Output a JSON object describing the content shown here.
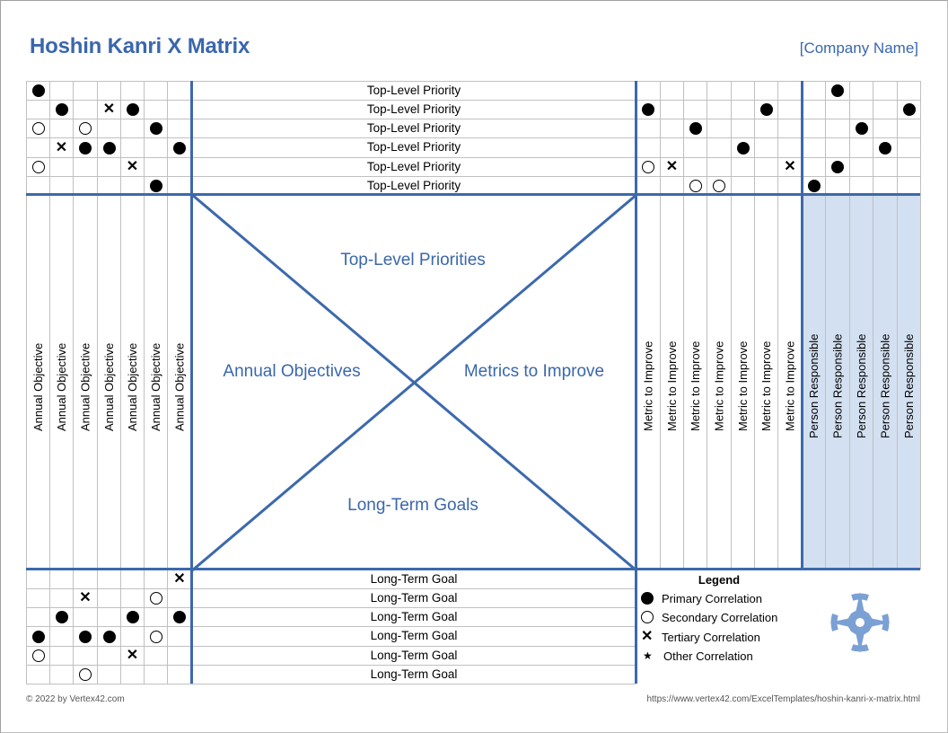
{
  "header": {
    "title": "Hoshin Kanri X Matrix",
    "company": "[Company Name]"
  },
  "colors": {
    "accent": "#3c69ad",
    "title": "#3a67ac",
    "person_fill": "#d3e0f1",
    "grid": "#c0c0c0",
    "compass": "#7ba0d4"
  },
  "quadrants": {
    "top": "Top-Level Priorities",
    "left": "Annual Objectives",
    "right": "Metrics to Improve",
    "bottom": "Long-Term Goals"
  },
  "top_rows": [
    {
      "label": "Top-Level Priority",
      "left": [
        "P",
        "",
        "",
        "",
        "",
        "",
        ""
      ],
      "metrics": [
        "",
        "",
        "",
        "",
        "",
        "",
        ""
      ],
      "persons": [
        "",
        "P",
        "",
        "",
        ""
      ]
    },
    {
      "label": "Top-Level Priority",
      "left": [
        "",
        "P",
        "",
        "X",
        "P",
        "",
        ""
      ],
      "metrics": [
        "P",
        "",
        "",
        "",
        "",
        "P",
        ""
      ],
      "persons": [
        "",
        "",
        "",
        "",
        "P"
      ]
    },
    {
      "label": "Top-Level Priority",
      "left": [
        "S",
        "",
        "S",
        "",
        "",
        "P",
        ""
      ],
      "metrics": [
        "",
        "",
        "P",
        "",
        "",
        "",
        ""
      ],
      "persons": [
        "",
        "",
        "P",
        "",
        ""
      ]
    },
    {
      "label": "Top-Level Priority",
      "left": [
        "",
        "X",
        "P",
        "P",
        "",
        "",
        "P"
      ],
      "metrics": [
        "",
        "",
        "",
        "",
        "P",
        "",
        ""
      ],
      "persons": [
        "",
        "",
        "",
        "P",
        ""
      ]
    },
    {
      "label": "Top-Level Priority",
      "left": [
        "S",
        "",
        "",
        "",
        "X",
        "",
        ""
      ],
      "metrics": [
        "S",
        "X",
        "",
        "",
        "",
        "",
        "X"
      ],
      "persons": [
        "",
        "P",
        "",
        "",
        ""
      ]
    },
    {
      "label": "Top-Level Priority",
      "left": [
        "",
        "",
        "",
        "",
        "",
        "P",
        ""
      ],
      "metrics": [
        "",
        "",
        "S",
        "S",
        "",
        "",
        ""
      ],
      "persons": [
        "P",
        "",
        "",
        "",
        ""
      ]
    }
  ],
  "annual_objectives": [
    "Annual Objective",
    "Annual Objective",
    "Annual Objective",
    "Annual Objective",
    "Annual Objective",
    "Annual Objective",
    "Annual Objective"
  ],
  "metrics": [
    "Metric to Improve",
    "Metric to Improve",
    "Metric to Improve",
    "Metric to Improve",
    "Metric to Improve",
    "Metric to Improve",
    "Metric to Improve"
  ],
  "persons": [
    "Person Responsible",
    "Person Responsible",
    "Person Responsible",
    "Person Responsible",
    "Person Responsible"
  ],
  "bottom_rows": [
    {
      "label": "Long-Term Goal",
      "left": [
        "",
        "",
        "",
        "",
        "",
        "",
        "X"
      ]
    },
    {
      "label": "Long-Term Goal",
      "left": [
        "",
        "",
        "X",
        "",
        "",
        "S",
        ""
      ]
    },
    {
      "label": "Long-Term Goal",
      "left": [
        "",
        "P",
        "",
        "",
        "P",
        "",
        "P"
      ]
    },
    {
      "label": "Long-Term Goal",
      "left": [
        "P",
        "",
        "P",
        "P",
        "",
        "S",
        ""
      ]
    },
    {
      "label": "Long-Term Goal",
      "left": [
        "S",
        "",
        "",
        "",
        "X",
        "",
        ""
      ]
    },
    {
      "label": "Long-Term Goal",
      "left": [
        "",
        "",
        "S",
        "",
        "",
        "",
        ""
      ]
    }
  ],
  "legend": {
    "title": "Legend",
    "items": [
      {
        "symbol": "P",
        "label": "Primary Correlation"
      },
      {
        "symbol": "S",
        "label": "Secondary Correlation"
      },
      {
        "symbol": "X",
        "label": "Tertiary Correlation"
      },
      {
        "symbol": "*",
        "label": "Other Correlation"
      }
    ]
  },
  "footer": {
    "copyright": "© 2022 by Vertex42.com",
    "url": "https://www.vertex42.com/ExcelTemplates/hoshin-kanri-x-matrix.html"
  }
}
